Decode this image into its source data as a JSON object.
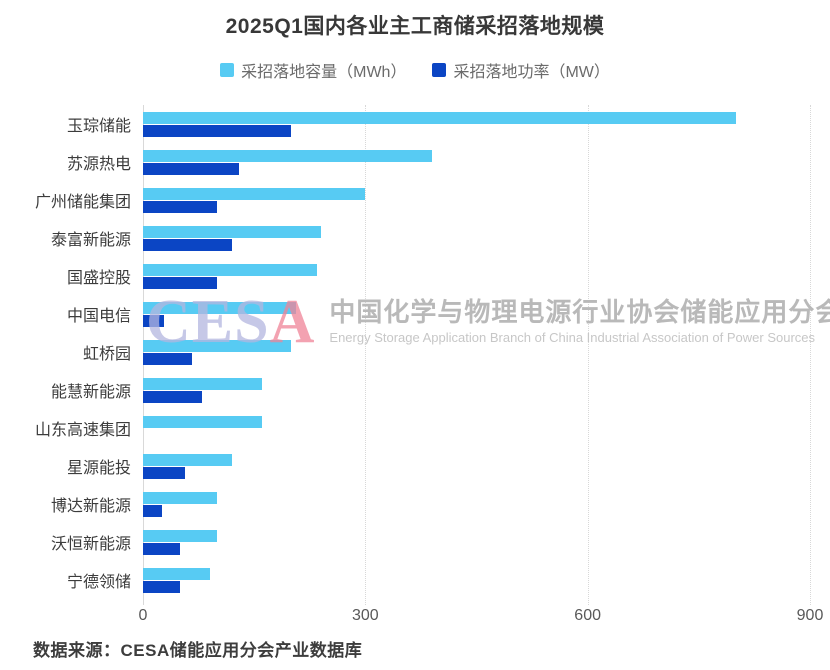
{
  "title": "2025Q1国内各业主工商储采招落地规模",
  "source": "数据来源：CESA储能应用分会产业数据库",
  "watermark": {
    "logo": "CESA",
    "logo_color_ces": "#b4b6e0",
    "logo_color_a": "#ef8498",
    "cn": "中国化学与物理电源行业协会储能应用分会",
    "en": "Energy Storage Application Branch of China Industrial Association of Power Sources"
  },
  "colors": {
    "capacity": "#57cbf3",
    "power": "#0b45c4",
    "grid": "#d8d8d8"
  },
  "chart_data": {
    "type": "bar",
    "orientation": "horizontal",
    "title": "2025Q1国内各业主工商储采招落地规模",
    "categories": [
      "玉琮储能",
      "苏源热电",
      "广州储能集团",
      "泰富新能源",
      "国盛控股",
      "中国电信",
      "虹桥园",
      "能慧新能源",
      "山东高速集团",
      "星源能投",
      "博达新能源",
      "沃恒新能源",
      "宁德领储"
    ],
    "series": [
      {
        "name": "采招落地容量（MWh）",
        "color": "#57cbf3",
        "values": [
          800,
          390,
          300,
          240,
          235,
          207,
          200,
          160,
          160,
          120,
          100,
          100,
          90
        ]
      },
      {
        "name": "采招落地功率（MW）",
        "color": "#0b45c4",
        "values": [
          200,
          130,
          100,
          120,
          100,
          28,
          66,
          80,
          0,
          57,
          25,
          50,
          50
        ]
      }
    ],
    "xlabel": "",
    "ylabel": "",
    "xlim": [
      0,
      900
    ],
    "xticks": [
      0,
      300,
      600,
      900
    ],
    "grid": "dotted-vertical",
    "legend_position": "top"
  }
}
